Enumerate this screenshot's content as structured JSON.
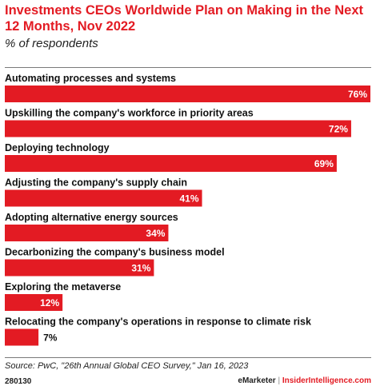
{
  "header": {
    "title": "Investments CEOs Worldwide Plan on Making in the Next 12 Months, Nov 2022",
    "subtitle": "% of respondents"
  },
  "chart_data": {
    "type": "bar",
    "orientation": "horizontal",
    "categories": [
      "Automating processes and systems",
      "Upskilling the company's workforce in priority areas",
      "Deploying technology",
      "Adjusting the company's supply chain",
      "Adopting alternative energy sources",
      "Decarbonizing the company's business model",
      "Exploring the metaverse",
      "Relocating the company's operations in response to climate risk"
    ],
    "values": [
      76,
      72,
      69,
      41,
      34,
      31,
      12,
      7
    ],
    "value_labels": [
      "76%",
      "72%",
      "69%",
      "41%",
      "34%",
      "31%",
      "12%",
      "7%"
    ],
    "bar_color": "#e31b23",
    "xlim": [
      0,
      76
    ],
    "grid": false
  },
  "footer": {
    "source": "Source: PwC, \"26th Annual Global CEO Survey,\" Jan 16, 2023",
    "chart_id": "280130",
    "brand_emarketer": "eMarketer",
    "brand_separator": "|",
    "brand_insider": "InsiderIntelligence.com"
  },
  "colors": {
    "accent": "#e31b23",
    "text": "#000000"
  }
}
